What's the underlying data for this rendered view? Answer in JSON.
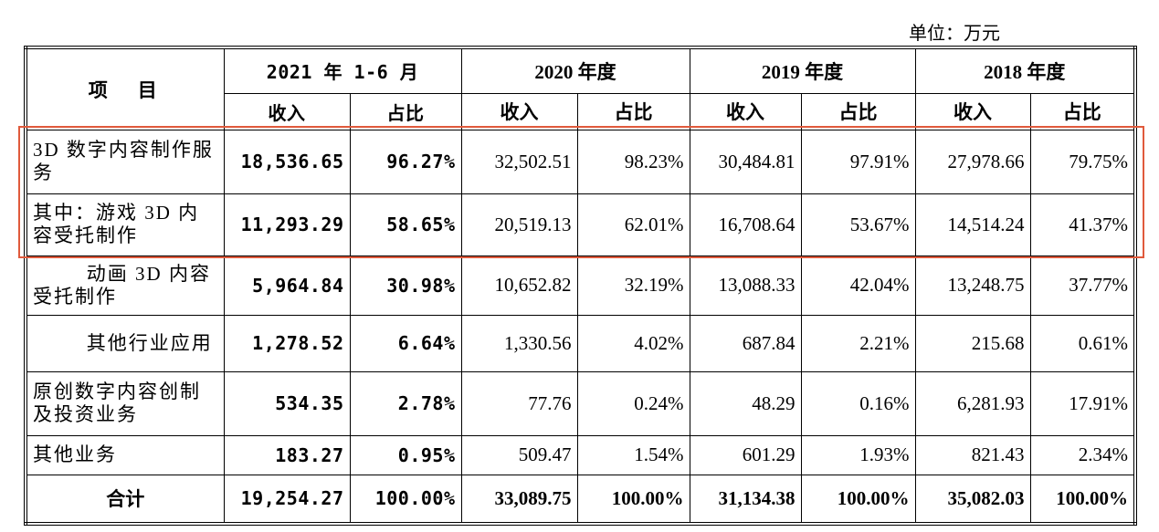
{
  "unit": "单位：万元",
  "table": {
    "header": {
      "item": "项　目",
      "periods": [
        "2021 年 1-6 月",
        "2020 年度",
        "2019 年度",
        "2018 年度"
      ],
      "subheaders": [
        "收入",
        "占比",
        "收入",
        "占比",
        "收入",
        "占比",
        "收入",
        "占比"
      ]
    },
    "rows": [
      [
        "3D 数字内容制作服务",
        "18,536.65",
        "96.27%",
        "32,502.51",
        "98.23%",
        "30,484.81",
        "97.91%",
        "27,978.66",
        "79.75%"
      ],
      [
        "其中：游戏 3D 内容受托制作",
        "11,293.29",
        "58.65%",
        "20,519.13",
        "62.01%",
        "16,708.64",
        "53.67%",
        "14,514.24",
        "41.37%"
      ],
      [
        "动画 3D 内容受托制作",
        "5,964.84",
        "30.98%",
        "10,652.82",
        "32.19%",
        "13,088.33",
        "42.04%",
        "13,248.75",
        "37.77%"
      ],
      [
        "其他行业应用",
        "1,278.52",
        "6.64%",
        "1,330.56",
        "4.02%",
        "687.84",
        "2.21%",
        "215.68",
        "0.61%"
      ],
      [
        "原创数字内容创制及投资业务",
        "534.35",
        "2.78%",
        "77.76",
        "0.24%",
        "48.29",
        "0.16%",
        "6,281.93",
        "17.91%"
      ],
      [
        "其他业务",
        "183.27",
        "0.95%",
        "509.47",
        "1.54%",
        "601.29",
        "1.93%",
        "821.43",
        "2.34%"
      ],
      [
        "合计",
        "19,254.27",
        "100.00%",
        "33,089.75",
        "100.00%",
        "31,134.38",
        "100.00%",
        "35,082.03",
        "100.00%"
      ]
    ]
  }
}
